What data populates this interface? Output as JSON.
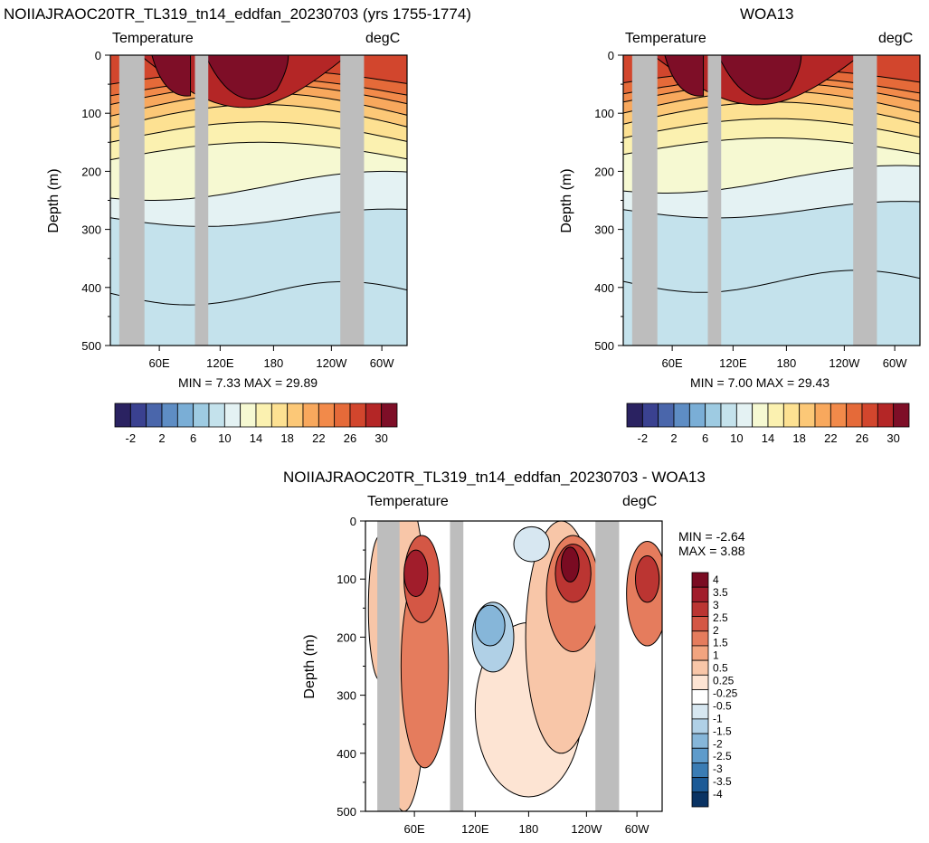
{
  "panels": {
    "model": {
      "title": "NOIIAJRAOC20TR_TL319_tn14_eddfan_20230703 (yrs 1755-1774)",
      "left_label": "Temperature",
      "right_label": "degC",
      "ylabel": "Depth (m)",
      "minmax": "MIN =   7.33  MAX =  29.89"
    },
    "obs": {
      "title": "WOA13",
      "left_label": "Temperature",
      "right_label": "degC",
      "ylabel": "Depth (m)",
      "minmax": "MIN =   7.00  MAX =  29.43"
    },
    "diff": {
      "title": "NOIIAJRAOC20TR_TL319_tn14_eddfan_20230703 - WOA13",
      "left_label": "Temperature",
      "right_label": "degC",
      "ylabel": "Depth (m)",
      "min_label": "MIN =  -2.64",
      "max_label": "MAX =   3.88"
    }
  },
  "colors": {
    "land": "#bdbdbd",
    "abs_palette": [
      "#2a2261",
      "#3a4190",
      "#4a66ab",
      "#5e8dc4",
      "#7aaed6",
      "#9ecbe2",
      "#c4e2ec",
      "#e4f2f3",
      "#f6f9d2",
      "#fbf1b0",
      "#fde192",
      "#fcc877",
      "#f8a85d",
      "#f28a4a",
      "#e56a39",
      "#d2462d",
      "#b42626",
      "#7e0e27"
    ],
    "diff_palette": [
      "#0a3363",
      "#1c5a96",
      "#3a7cb4",
      "#5e9bcb",
      "#86b6d9",
      "#b0d0e6",
      "#d7e7f1",
      "#ffffff",
      "#fde4d3",
      "#f8c6a8",
      "#f2a47f",
      "#e57c5d",
      "#d45745",
      "#bb3532",
      "#a11d2b",
      "#7a0b22"
    ]
  },
  "chart_data": [
    {
      "type": "heatmap",
      "name_ref": "model",
      "title": "NOIIAJRAOC20TR_TL319_tn14_eddfan_20230703 (yrs 1755-1774)",
      "ylabel": "Depth (m)",
      "ylim": [
        500,
        0
      ],
      "yticks": [
        "0",
        "100",
        "200",
        "300",
        "400",
        "500"
      ],
      "xticks": [
        "60E",
        "120E",
        "180",
        "120W",
        "60W"
      ],
      "min": 7.33,
      "max": 29.89,
      "colorbar_labels": [
        "-2",
        "2",
        "6",
        "10",
        "14",
        "18",
        "22",
        "26",
        "30"
      ]
    },
    {
      "type": "heatmap",
      "name_ref": "obs",
      "title": "WOA13",
      "ylabel": "Depth (m)",
      "ylim": [
        500,
        0
      ],
      "yticks": [
        "0",
        "100",
        "200",
        "300",
        "400",
        "500"
      ],
      "xticks": [
        "60E",
        "120E",
        "180",
        "120W",
        "60W"
      ],
      "min": 7.0,
      "max": 29.43,
      "colorbar_labels": [
        "-2",
        "2",
        "6",
        "10",
        "14",
        "18",
        "22",
        "26",
        "30"
      ]
    },
    {
      "type": "heatmap",
      "name_ref": "diff",
      "title": "NOIIAJRAOC20TR_TL319_tn14_eddfan_20230703 - WOA13",
      "ylabel": "Depth (m)",
      "ylim": [
        500,
        0
      ],
      "yticks": [
        "0",
        "100",
        "200",
        "300",
        "400",
        "500"
      ],
      "xticks": [
        "60E",
        "120E",
        "180",
        "120W",
        "60W"
      ],
      "min": -2.64,
      "max": 3.88,
      "colorbar_labels": [
        "4",
        "3.5",
        "3",
        "2.5",
        "2",
        "1.5",
        "1",
        "0.5",
        "0.25",
        "-0.25",
        "-0.5",
        "-1",
        "-1.5",
        "-2",
        "-2.5",
        "-3",
        "-3.5",
        "-4"
      ]
    }
  ]
}
